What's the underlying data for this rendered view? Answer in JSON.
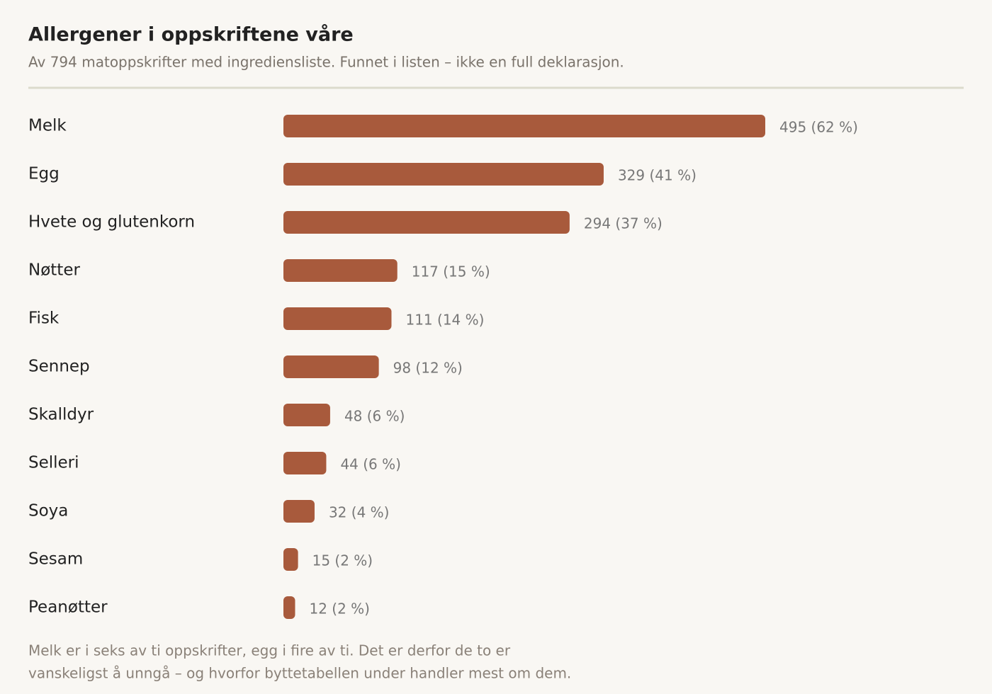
{
  "chart_data": {
    "type": "bar",
    "orientation": "horizontal",
    "title": "Allergener i oppskriftene våre",
    "subtitle": "Av 794 matoppskrifter med ingrediensliste. Funnet i listen – ikke en full deklarasjon.",
    "categories": [
      "Melk",
      "Egg",
      "Hvete og glutenkorn",
      "Nøtter",
      "Fisk",
      "Sennep",
      "Skalldyr",
      "Selleri",
      "Soya",
      "Sesam",
      "Peanøtter"
    ],
    "values": [
      495,
      329,
      294,
      117,
      111,
      98,
      48,
      44,
      32,
      15,
      12
    ],
    "value_labels": [
      "495 (62 %)",
      "329 (41 %)",
      "294 (37 %)",
      "117 (15 %)",
      "111 (14 %)",
      "98 (12 %)",
      "48 (6 %)",
      "44 (6 %)",
      "32 (4 %)",
      "15 (2 %)",
      "12 (2 %)"
    ],
    "color": "#a85a3c",
    "note": [
      "Melk er i seks av ti oppskrifter, egg i fire av ti. Det er derfor de to er",
      "vanskeligst å unngå – og hvorfor byttetabellen under handler mest om dem."
    ]
  }
}
